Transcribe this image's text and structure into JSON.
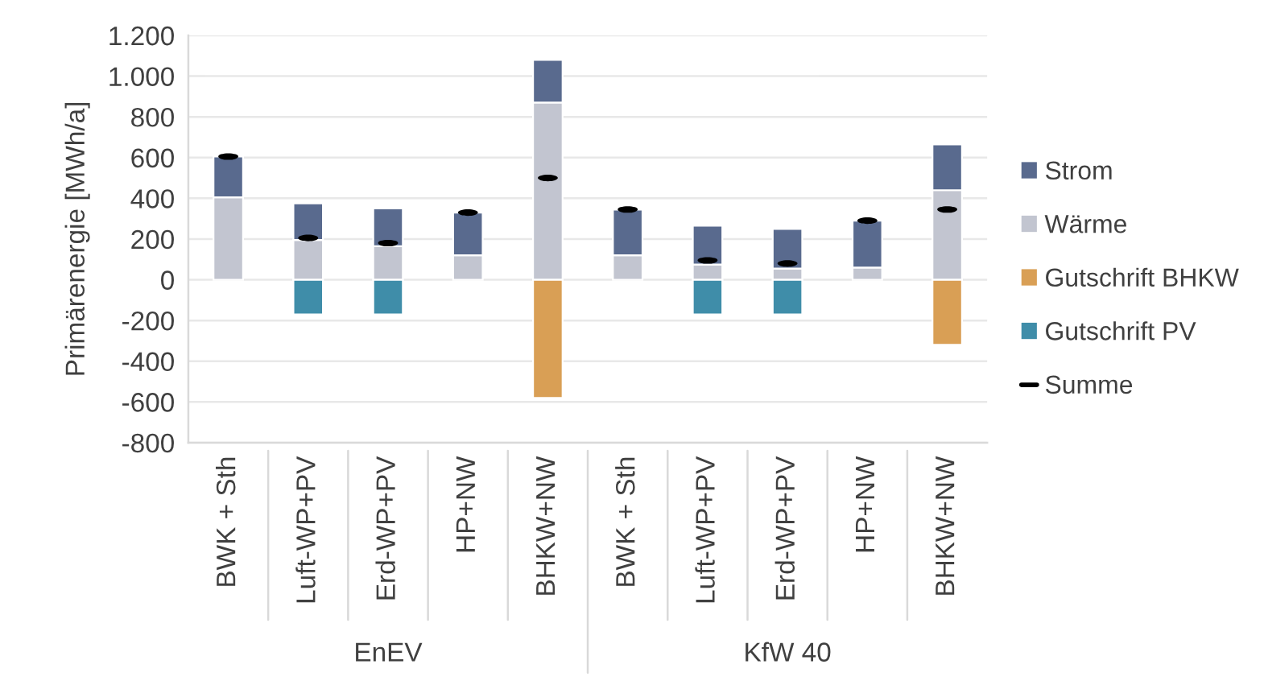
{
  "chart_data": {
    "type": "bar",
    "stacked": true,
    "ylabel": "Primärenergie [MWh/a]",
    "categories": [
      "BWK + Sth",
      "Luft-WP+PV",
      "Erd-WP+PV",
      "HP+NW",
      "BHKW+NW",
      "BWK + Sth",
      "Luft-WP+PV",
      "Erd-WP+PV",
      "HP+NW",
      "BHKW+NW"
    ],
    "series": [
      {
        "name": "Wärme",
        "color": "#c2c5d0",
        "values": [
          405,
          195,
          165,
          120,
          870,
          120,
          75,
          55,
          60,
          440
        ]
      },
      {
        "name": "Strom",
        "color": "#596a8e",
        "values": [
          200,
          180,
          185,
          210,
          210,
          225,
          190,
          195,
          230,
          225
        ]
      },
      {
        "name": "Gutschrift BHKW",
        "color": "#d99f55",
        "values": [
          null,
          null,
          null,
          null,
          -580,
          null,
          null,
          null,
          null,
          -320
        ]
      },
      {
        "name": "Gutschrift PV",
        "color": "#3f8da9",
        "values": [
          null,
          -170,
          -170,
          null,
          null,
          null,
          -170,
          -170,
          null,
          null
        ]
      },
      {
        "name": "Summe",
        "type": "scatter",
        "color": "#000000",
        "values": [
          605,
          205,
          180,
          330,
          500,
          345,
          95,
          80,
          290,
          345
        ]
      }
    ],
    "ylim": [
      -800,
      1200
    ],
    "yticks": [
      -800,
      -600,
      -400,
      -200,
      0,
      200,
      400,
      600,
      800,
      {
        "value": 1000,
        "label": "1.000"
      },
      {
        "value": 1200,
        "label": "1.200"
      }
    ],
    "grid": "y",
    "legend": "right",
    "annotations": [
      "EnEV",
      "KfW 40"
    ]
  }
}
